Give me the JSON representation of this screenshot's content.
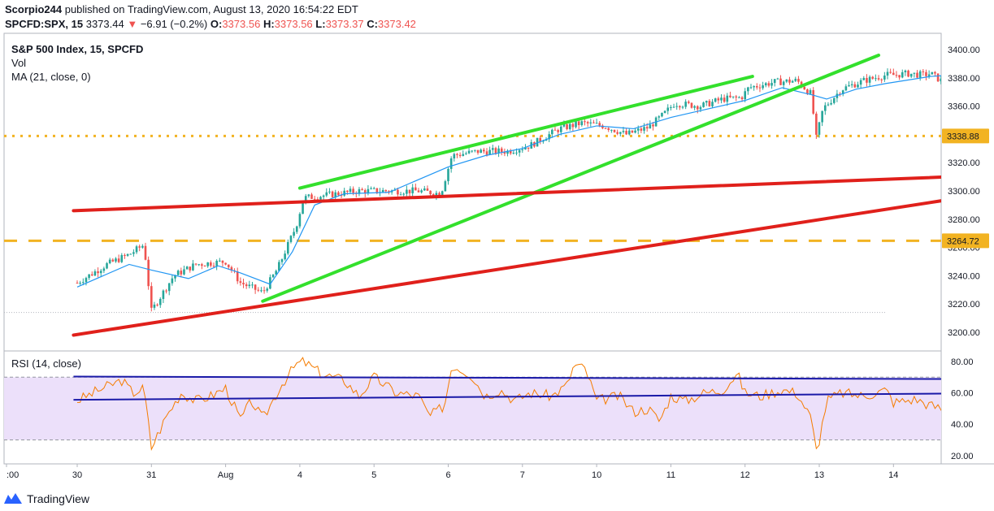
{
  "header": {
    "author": "Scorpio244",
    "published_text": "published on TradingView.com, August 13, 2020 16:54:22 EDT"
  },
  "quote": {
    "symbol": "SPCFD:SPX, 15",
    "last": "3373.44",
    "arrow": "▼",
    "change": "−6.91 (−0.2%)",
    "o_label": "O:",
    "o_value": "3373.56",
    "h_label": "H:",
    "h_value": "3373.56",
    "l_label": "L:",
    "l_value": "3373.37",
    "c_label": "C:",
    "c_value": "3373.42"
  },
  "legend": {
    "title": "S&P 500 Index, 15, SPCFD",
    "vol": "Vol",
    "ma": "MA (21, close, 0)",
    "rsi": "RSI (14, close)"
  },
  "footer": {
    "brand": "TradingView"
  },
  "colors": {
    "up": "#26a69a",
    "down": "#ef5350",
    "ma": "#2196f3",
    "rsi": "#f57c00",
    "rsi_band": "#ece0fa",
    "green_lines": "#33e02c",
    "red_lines": "#e0201b",
    "gold": "#f2b322",
    "navy": "#1a1aa8"
  },
  "chart_data": [
    {
      "type": "candlestick",
      "title": "S&P 500 Index, 15, SPCFD",
      "price_axis_ticks": [
        3200,
        3220,
        3240,
        3260,
        3280,
        3300,
        3320,
        3340,
        3360,
        3380,
        3400
      ],
      "time_axis_labels": [
        ":00",
        "30",
        "31",
        "Aug",
        "4",
        "5",
        "6",
        "7",
        "10",
        "11",
        "12",
        "13",
        "14"
      ],
      "ylim": [
        3189,
        3408
      ],
      "levels": [
        {
          "name": "dotted level",
          "value": 3338.88,
          "label": "3338.88"
        },
        {
          "name": "dashed level",
          "value": 3264.72,
          "label": "3264.72"
        }
      ],
      "series": [
        {
          "name": "S&P 500 Index",
          "close_path_x_days": [
            0,
            0.4,
            0.7,
            0.9,
            1.0,
            1.3,
            1.6,
            2.0,
            2.2,
            2.5,
            2.7,
            2.95,
            3.05,
            3.5,
            3.8,
            4.2,
            4.6,
            4.9,
            5.05,
            5.4,
            5.8,
            6.1,
            6.5,
            6.8,
            7.1,
            7.4,
            7.7,
            7.9,
            8.05,
            8.4,
            8.7,
            8.95,
            9.05,
            9.4,
            9.7,
            9.9,
            9.95,
            10.05,
            10.3,
            10.6,
            10.9,
            11.0,
            11.2,
            11.4,
            11.5,
            11.7,
            11.8,
            11.95
          ],
          "close_path_y": [
            3235,
            3248,
            3255,
            3262,
            3215,
            3240,
            3248,
            3250,
            3235,
            3228,
            3245,
            3275,
            3295,
            3298,
            3300,
            3300,
            3300,
            3298,
            3325,
            3328,
            3328,
            3332,
            3344,
            3348,
            3346,
            3340,
            3345,
            3354,
            3362,
            3360,
            3365,
            3366,
            3373,
            3377,
            3378,
            3368,
            3335,
            3358,
            3372,
            3378,
            3382,
            3382,
            3383,
            3382,
            3383,
            3376,
            3368,
            3373
          ]
        },
        {
          "name": "MA (21, close, 0)",
          "x_days": [
            0,
            0.7,
            1.0,
            1.5,
            1.9,
            2.2,
            2.6,
            2.9,
            3.2,
            3.6,
            4.2,
            5.0,
            5.5,
            6.0,
            6.5,
            7.0,
            7.5,
            8.0,
            8.5,
            9.0,
            9.5,
            9.9,
            10.1,
            10.5,
            10.9,
            11.5,
            11.8,
            12.0
          ],
          "y": [
            3232,
            3248,
            3244,
            3238,
            3247,
            3242,
            3234,
            3257,
            3290,
            3298,
            3299,
            3317,
            3325,
            3330,
            3340,
            3346,
            3344,
            3352,
            3358,
            3364,
            3373,
            3368,
            3365,
            3372,
            3376,
            3381,
            3382,
            3379
          ]
        }
      ],
      "trendlines": [
        {
          "name": "upper green channel",
          "from": [
            3.0,
            3302
          ],
          "to": [
            9.1,
            3381
          ]
        },
        {
          "name": "lower green channel",
          "from": [
            2.5,
            3222
          ],
          "to": [
            10.8,
            3396
          ]
        },
        {
          "name": "upper red line",
          "from": [
            -0.05,
            3286
          ],
          "to": [
            12.75,
            3312
          ]
        },
        {
          "name": "lower red line",
          "from": [
            -0.05,
            3198
          ],
          "to": [
            12.75,
            3302
          ]
        }
      ]
    },
    {
      "type": "line",
      "title": "RSI (14, close)",
      "ylim": [
        15,
        85
      ],
      "axis_ticks": [
        20,
        40,
        60,
        80
      ],
      "bands": [
        30,
        70
      ],
      "series": [
        {
          "name": "RSI (14, close)",
          "x_days": [
            0,
            0.3,
            0.6,
            0.75,
            0.9,
            1.0,
            1.2,
            1.4,
            1.6,
            1.8,
            2.0,
            2.2,
            2.35,
            2.5,
            2.6,
            2.75,
            2.95,
            3.05,
            3.3,
            3.6,
            3.8,
            4.0,
            4.3,
            4.6,
            4.75,
            4.95,
            5.05,
            5.3,
            5.5,
            5.7,
            5.9,
            6.1,
            6.4,
            6.6,
            6.7,
            6.85,
            7.0,
            7.3,
            7.5,
            7.7,
            7.85,
            8.0,
            8.2,
            8.45,
            8.7,
            8.85,
            8.9,
            9.0,
            9.2,
            9.5,
            9.7,
            9.9,
            9.95,
            10.0,
            10.1,
            10.3,
            10.6,
            10.9,
            11.0,
            11.3,
            11.5,
            11.65,
            11.75,
            11.8,
            11.95
          ],
          "y": [
            55,
            62,
            68,
            60,
            63,
            25,
            45,
            60,
            55,
            58,
            63,
            43,
            55,
            43,
            52,
            65,
            78,
            80,
            72,
            68,
            58,
            70,
            60,
            58,
            45,
            52,
            78,
            72,
            58,
            62,
            55,
            60,
            58,
            65,
            78,
            75,
            55,
            58,
            48,
            50,
            42,
            58,
            55,
            60,
            62,
            70,
            72,
            60,
            58,
            62,
            60,
            43,
            22,
            30,
            55,
            60,
            58,
            62,
            54,
            56,
            52,
            50,
            35,
            30,
            44
          ]
        }
      ],
      "trendlines": [
        {
          "name": "upper navy line",
          "from": [
            -0.05,
            70.4
          ],
          "to": [
            12.75,
            68.7
          ]
        },
        {
          "name": "lower navy line",
          "from": [
            -0.05,
            55.6
          ],
          "to": [
            12.75,
            59.9
          ]
        }
      ]
    }
  ]
}
